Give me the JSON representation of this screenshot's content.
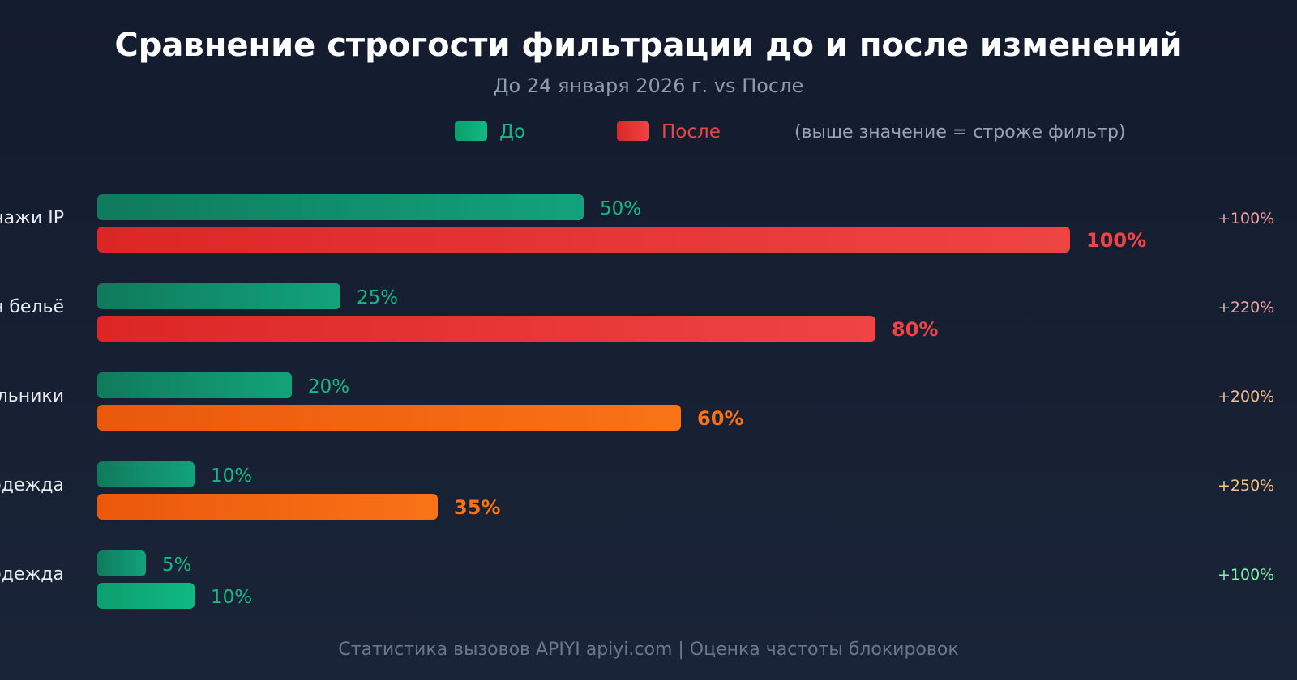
{
  "chart_data": {
    "type": "bar",
    "title": "Сравнение строгости фильтрации до и после изменений",
    "subtitle": "До 24 января 2026 г. vs После",
    "legend": {
      "before": "До",
      "after": "После",
      "note": "(выше значение = строже фильтр)"
    },
    "categories": [
      "нажи IP",
      "н бельё",
      "льники",
      "одежда",
      "одежда"
    ],
    "series": [
      {
        "name": "До",
        "values": [
          50,
          25,
          20,
          10,
          5
        ],
        "labels": [
          "50%",
          "25%",
          "20%",
          "10%",
          "5%"
        ]
      },
      {
        "name": "После",
        "values": [
          100,
          80,
          60,
          35,
          10
        ],
        "labels": [
          "100%",
          "80%",
          "60%",
          "35%",
          "10%"
        ]
      }
    ],
    "changes": [
      "+100%",
      "+220%",
      "+200%",
      "+250%",
      "+100%"
    ],
    "after_colors": [
      "red",
      "red",
      "orange",
      "orange",
      "green"
    ],
    "xlim": [
      0,
      100
    ],
    "footer": "Статистика вызовов APIYI apiyi.com | Оценка частоты блокировок"
  },
  "colors": {
    "before_start": "#0f7a5c",
    "before_end": "#12a37a",
    "red_start": "#dc2626",
    "red_end": "#ef4444",
    "orange_start": "#ea580c",
    "orange_end": "#f97316",
    "green_start": "#0d9e6e",
    "green_end": "#10b981",
    "red_text": "#ef4444",
    "orange_text": "#f97316",
    "green_text": "#16b985",
    "change_red": "#f0a5a5",
    "change_orange": "#f5c08a",
    "change_green": "#86efac"
  }
}
